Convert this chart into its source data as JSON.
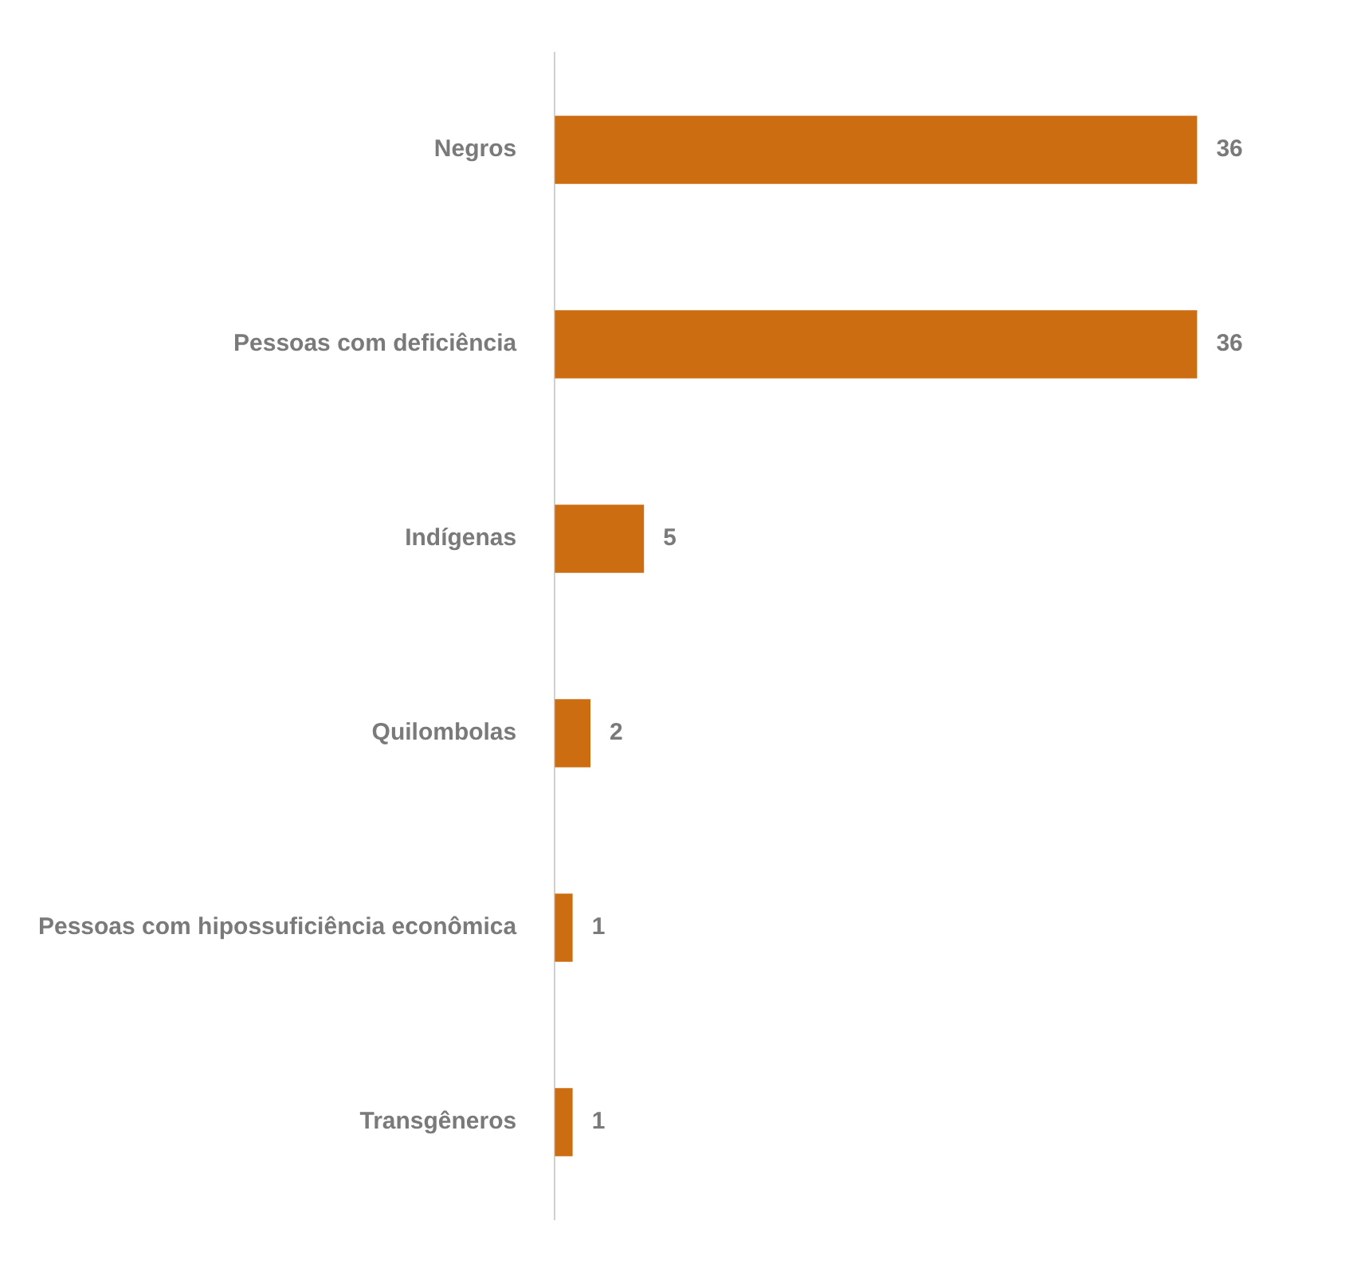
{
  "chart_data": {
    "type": "bar",
    "orientation": "horizontal",
    "categories": [
      "Negros",
      "Pessoas com deficiência",
      "Indígenas",
      "Quilombolas",
      "Pessoas com hipossuficiência econômica",
      "Transgêneros"
    ],
    "values": [
      36,
      36,
      5,
      2,
      1,
      1
    ],
    "color": "#cc6d12",
    "data_labels": true,
    "legend": false,
    "tick_labels": "y"
  }
}
